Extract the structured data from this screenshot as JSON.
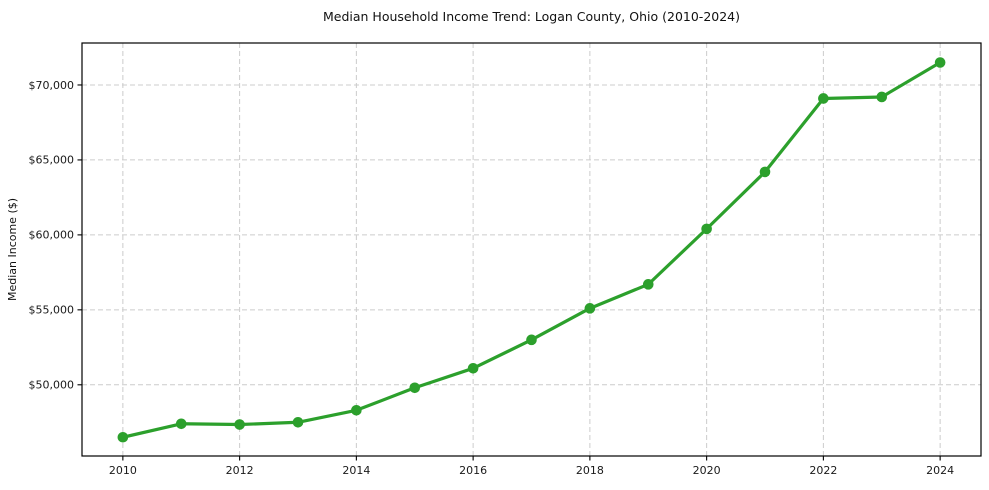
{
  "chart_data": {
    "type": "line",
    "title": "Median Household Income Trend: Logan County, Ohio (2010-2024)",
    "xlabel": "",
    "ylabel": "Median Income ($)",
    "x": [
      2010,
      2011,
      2012,
      2013,
      2014,
      2015,
      2016,
      2017,
      2018,
      2019,
      2020,
      2021,
      2022,
      2023,
      2024
    ],
    "values": [
      46500,
      47400,
      47350,
      47500,
      48300,
      49800,
      51100,
      53000,
      55100,
      56700,
      60400,
      64200,
      69100,
      69200,
      71500
    ],
    "series_name": "Median Household Income",
    "xlim": [
      2009.3,
      2024.7
    ],
    "ylim": [
      45250,
      72800
    ],
    "x_ticks": [
      2010,
      2012,
      2014,
      2016,
      2018,
      2020,
      2022,
      2024
    ],
    "x_tick_labels": [
      "2010",
      "2012",
      "2014",
      "2016",
      "2018",
      "2020",
      "2022",
      "2024"
    ],
    "y_ticks": [
      50000,
      55000,
      60000,
      65000,
      70000
    ],
    "y_tick_labels": [
      "$50,000",
      "$55,000",
      "$60,000",
      "$65,000",
      "$70,000"
    ],
    "grid": true,
    "grid_style": "dashed",
    "legend": false,
    "marker": "circle",
    "line_color": "#2ca02c",
    "grid_color": "#cccccc",
    "axis_color": "#000000",
    "text_color": "#1a1a1a",
    "background_color": "#ffffff"
  }
}
